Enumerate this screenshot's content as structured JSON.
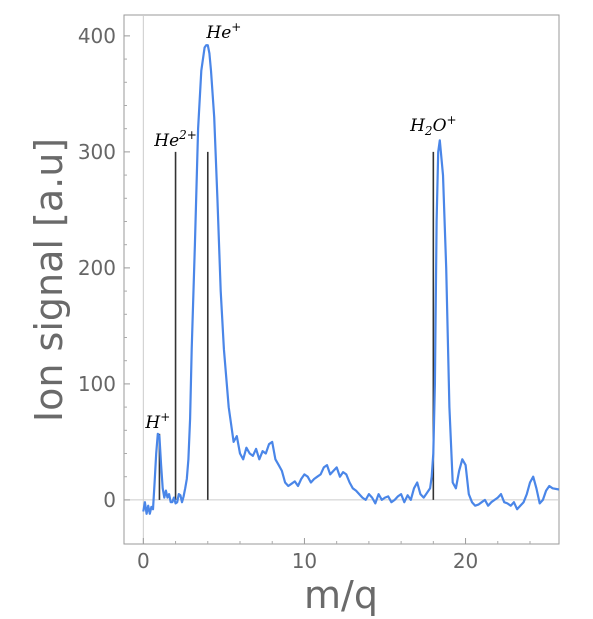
{
  "chart_data": {
    "type": "line",
    "title": "",
    "xlabel": "m/q",
    "ylabel": "Ion signal [a.u]",
    "xlim": [
      -1.2,
      25.8
    ],
    "ylim": [
      -38,
      418
    ],
    "x_ticks": [
      0,
      10,
      20
    ],
    "y_ticks": [
      0,
      100,
      200,
      300,
      400
    ],
    "grid": false,
    "series": [
      {
        "color": "#4a86e8",
        "x": [
          0.0,
          0.1,
          0.2,
          0.3,
          0.4,
          0.5,
          0.6,
          0.7,
          0.8,
          0.9,
          1.0,
          1.1,
          1.2,
          1.3,
          1.4,
          1.5,
          1.6,
          1.7,
          1.8,
          1.9,
          2.0,
          2.1,
          2.2,
          2.3,
          2.4,
          2.5,
          2.6,
          2.7,
          2.8,
          2.9,
          3.0,
          3.2,
          3.4,
          3.6,
          3.8,
          3.9,
          4.0,
          4.1,
          4.2,
          4.4,
          4.6,
          4.8,
          5.0,
          5.3,
          5.6,
          5.8,
          6.0,
          6.2,
          6.4,
          6.6,
          6.8,
          7.0,
          7.2,
          7.4,
          7.6,
          7.8,
          8.0,
          8.2,
          8.4,
          8.6,
          8.8,
          9.0,
          9.2,
          9.4,
          9.6,
          9.8,
          10.0,
          10.2,
          10.4,
          10.6,
          10.8,
          11.0,
          11.2,
          11.4,
          11.6,
          11.8,
          12.0,
          12.2,
          12.4,
          12.6,
          12.8,
          13.0,
          13.2,
          13.4,
          13.6,
          13.8,
          14.0,
          14.2,
          14.4,
          14.6,
          14.8,
          15.0,
          15.2,
          15.4,
          15.6,
          15.8,
          16.0,
          16.2,
          16.4,
          16.6,
          16.8,
          17.0,
          17.2,
          17.4,
          17.6,
          17.8,
          17.9,
          18.0,
          18.1,
          18.2,
          18.3,
          18.4,
          18.6,
          18.8,
          19.0,
          19.2,
          19.4,
          19.6,
          19.8,
          20.0,
          20.2,
          20.4,
          20.6,
          20.8,
          21.0,
          21.2,
          21.4,
          21.6,
          21.8,
          22.0,
          22.2,
          22.4,
          22.6,
          22.8,
          23.0,
          23.2,
          23.4,
          23.6,
          23.8,
          24.0,
          24.2,
          24.4,
          24.6,
          24.8,
          25.0,
          25.2,
          25.4,
          25.8
        ],
        "y": [
          -10,
          -2,
          -12,
          -5,
          -12,
          -6,
          -8,
          15,
          40,
          57,
          55,
          30,
          10,
          2,
          8,
          2,
          5,
          -2,
          -2,
          2,
          -3,
          -2,
          5,
          4,
          -2,
          3,
          10,
          18,
          35,
          70,
          130,
          220,
          320,
          370,
          390,
          392,
          392,
          385,
          370,
          330,
          260,
          180,
          130,
          80,
          50,
          55,
          40,
          35,
          45,
          40,
          38,
          44,
          35,
          42,
          40,
          48,
          50,
          35,
          30,
          25,
          15,
          12,
          14,
          16,
          12,
          18,
          22,
          20,
          15,
          18,
          20,
          22,
          28,
          30,
          22,
          25,
          28,
          20,
          24,
          22,
          15,
          10,
          8,
          5,
          2,
          0,
          5,
          2,
          -3,
          5,
          0,
          2,
          3,
          -2,
          0,
          3,
          5,
          -2,
          4,
          0,
          10,
          15,
          5,
          2,
          6,
          10,
          20,
          40,
          100,
          240,
          300,
          310,
          280,
          200,
          80,
          15,
          10,
          25,
          35,
          30,
          5,
          -2,
          -5,
          -4,
          -2,
          0,
          -5,
          -2,
          0,
          2,
          5,
          -2,
          -3,
          -5,
          -2,
          -8,
          -5,
          -2,
          5,
          15,
          20,
          10,
          -3,
          0,
          8,
          12,
          10,
          9
        ]
      }
    ],
    "reference_lines": [
      {
        "x": 1,
        "y": 57
      },
      {
        "x": 2,
        "y": 300
      },
      {
        "x": 4,
        "y": 300
      },
      {
        "x": 18,
        "y": 300
      }
    ],
    "annotations": [
      {
        "base": "H",
        "sub": "",
        "sup": "+",
        "x": 0.9,
        "y": 62
      },
      {
        "base": "He",
        "sub": "",
        "sup": "2+",
        "x": 2.0,
        "y": 305
      },
      {
        "base": "He",
        "sub": "",
        "sup": "+",
        "x": 5.0,
        "y": 398
      },
      {
        "base": "H",
        "sub": "2",
        "mid": "O",
        "sup": "+",
        "x": 18.0,
        "y": 318
      }
    ]
  }
}
